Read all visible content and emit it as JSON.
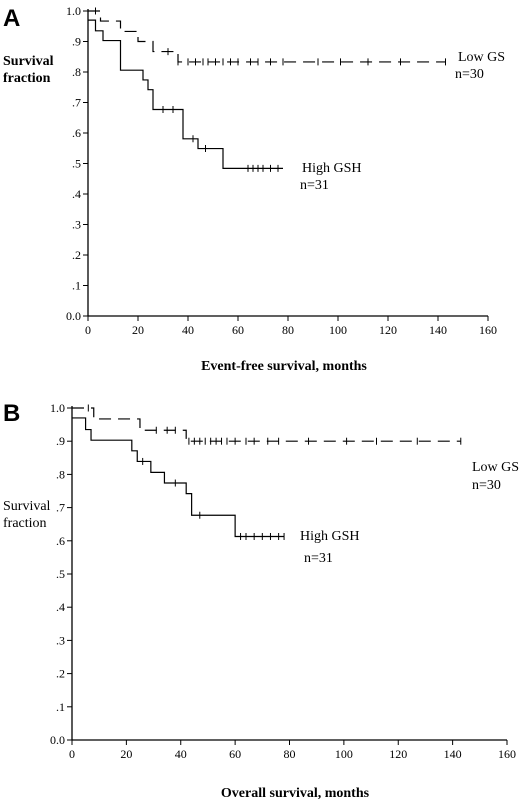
{
  "chart_data": [
    {
      "type": "line",
      "panel_label": "A",
      "xlabel": "Event-free survival, months",
      "ylabel": [
        "Survival",
        "fraction"
      ],
      "xlim": [
        0,
        160
      ],
      "ylim": [
        0,
        1
      ],
      "xticks": [
        "0",
        "20",
        "40",
        "60",
        "80",
        "100",
        "120",
        "140",
        "160"
      ],
      "yticks": [
        "0.0",
        ".1",
        ".2",
        ".3",
        ".4",
        ".5",
        ".6",
        ".7",
        ".8",
        ".9",
        "1.0"
      ],
      "grid": false,
      "series": [
        {
          "name": "Low GS",
          "n_label": "n=30",
          "style": "dashed",
          "steps": [
            [
              0,
              1.0
            ],
            [
              5,
              0.967
            ],
            [
              13,
              0.933
            ],
            [
              20,
              0.9
            ],
            [
              26,
              0.867
            ],
            [
              36,
              0.833
            ],
            [
              80,
              0.833
            ],
            [
              143,
              0.833
            ]
          ],
          "censored": [
            3,
            32,
            36,
            40,
            43,
            46,
            48,
            51,
            54,
            57,
            60,
            65,
            68,
            73,
            78,
            92,
            101,
            112,
            125,
            143
          ]
        },
        {
          "name": "High GSH",
          "n_label": "n=31",
          "style": "solid",
          "steps": [
            [
              0,
              0.97
            ],
            [
              3,
              0.935
            ],
            [
              6,
              0.903
            ],
            [
              13,
              0.806
            ],
            [
              22,
              0.774
            ],
            [
              24,
              0.742
            ],
            [
              26,
              0.677
            ],
            [
              38,
              0.581
            ],
            [
              44,
              0.549
            ],
            [
              54,
              0.484
            ],
            [
              78,
              0.484
            ]
          ],
          "censored": [
            30,
            34,
            42,
            47,
            64,
            66,
            68,
            70,
            73,
            76
          ]
        }
      ]
    },
    {
      "type": "line",
      "panel_label": "B",
      "xlabel": "Overall survival, months",
      "ylabel": [
        "Survival",
        "fraction"
      ],
      "xlim": [
        0,
        160
      ],
      "ylim": [
        0,
        1
      ],
      "xticks": [
        "0",
        "20",
        "40",
        "60",
        "80",
        "100",
        "120",
        "140",
        "160"
      ],
      "yticks": [
        "0.0",
        ".1",
        ".2",
        ".3",
        ".4",
        ".5",
        ".6",
        ".7",
        ".8",
        ".9",
        "1.0"
      ],
      "grid": false,
      "series": [
        {
          "name": "Low GS",
          "n_label": "n=30",
          "style": "dashed",
          "steps": [
            [
              0,
              1.0
            ],
            [
              8,
              0.967
            ],
            [
              25,
              0.933
            ],
            [
              42,
              0.9
            ],
            [
              80,
              0.9
            ],
            [
              143,
              0.9
            ]
          ],
          "censored": [
            6,
            31,
            35,
            38,
            43,
            45,
            47,
            49,
            51,
            53,
            55,
            57,
            60,
            64,
            67,
            72,
            76,
            87,
            101,
            112,
            127,
            143
          ]
        },
        {
          "name": "High GSH",
          "n_label": "n=31",
          "style": "solid",
          "steps": [
            [
              0,
              0.97
            ],
            [
              5,
              0.935
            ],
            [
              7,
              0.903
            ],
            [
              22,
              0.871
            ],
            [
              24,
              0.839
            ],
            [
              29,
              0.806
            ],
            [
              34,
              0.774
            ],
            [
              42,
              0.742
            ],
            [
              44,
              0.677
            ],
            [
              60,
              0.613
            ],
            [
              78,
              0.613
            ]
          ],
          "censored": [
            26,
            38,
            47,
            62,
            64,
            67,
            70,
            73,
            76,
            78
          ]
        }
      ]
    }
  ]
}
